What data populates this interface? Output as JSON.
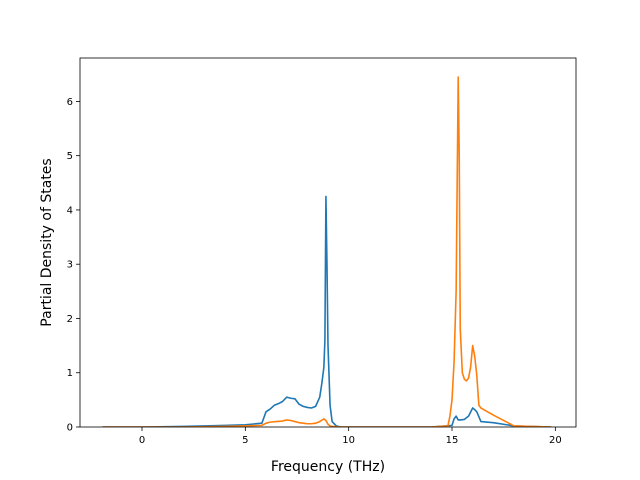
{
  "chart_data": {
    "type": "line",
    "title": "",
    "xlabel": "Frequency (THz)",
    "ylabel": "Partial Density of States",
    "xlim": [
      -3,
      21
    ],
    "ylim": [
      0,
      6.8
    ],
    "xticks": [
      0,
      5,
      10,
      15,
      20
    ],
    "yticks": [
      0,
      1,
      2,
      3,
      4,
      5,
      6
    ],
    "grid": false,
    "legend": "none",
    "series": [
      {
        "color": "#1f77b4",
        "x": [
          -1.9,
          0,
          2,
          4,
          5,
          5.8,
          6.0,
          6.2,
          6.4,
          6.6,
          6.8,
          7.0,
          7.2,
          7.4,
          7.6,
          7.8,
          8.0,
          8.2,
          8.4,
          8.6,
          8.7,
          8.8,
          8.85,
          8.9,
          8.95,
          9.0,
          9.1,
          9.2,
          9.4,
          9.6,
          10,
          12,
          14,
          15.0,
          15.1,
          15.2,
          15.3,
          15.4,
          15.6,
          15.8,
          16.0,
          16.1,
          16.2,
          16.4,
          17.0,
          18.0,
          19.8
        ],
        "y": [
          0,
          0,
          0.01,
          0.03,
          0.04,
          0.07,
          0.28,
          0.33,
          0.4,
          0.43,
          0.47,
          0.55,
          0.53,
          0.52,
          0.42,
          0.38,
          0.36,
          0.35,
          0.38,
          0.55,
          0.8,
          1.1,
          1.6,
          4.25,
          3.0,
          1.5,
          0.4,
          0.1,
          0.02,
          0,
          0,
          0,
          0,
          0.03,
          0.15,
          0.2,
          0.13,
          0.13,
          0.14,
          0.2,
          0.35,
          0.32,
          0.28,
          0.1,
          0.08,
          0.02,
          0
        ]
      },
      {
        "color": "#ff7f0e",
        "x": [
          -1.9,
          0,
          2,
          4,
          5,
          5.8,
          6.0,
          6.2,
          6.5,
          6.8,
          7.0,
          7.2,
          7.4,
          7.6,
          7.8,
          8.0,
          8.2,
          8.4,
          8.6,
          8.8,
          8.9,
          9.0,
          9.1,
          9.2,
          9.6,
          10,
          12,
          14,
          14.8,
          14.9,
          15.0,
          15.1,
          15.2,
          15.3,
          15.35,
          15.4,
          15.5,
          15.6,
          15.7,
          15.8,
          15.9,
          16.0,
          16.1,
          16.2,
          16.3,
          16.4,
          17.0,
          17.8,
          18.0,
          19.8
        ],
        "y": [
          0,
          0,
          0,
          0.01,
          0.02,
          0.03,
          0.07,
          0.09,
          0.1,
          0.11,
          0.13,
          0.12,
          0.1,
          0.08,
          0.07,
          0.06,
          0.06,
          0.07,
          0.1,
          0.15,
          0.12,
          0.05,
          0.02,
          0.01,
          0,
          0,
          0,
          0,
          0.02,
          0.2,
          0.5,
          1.2,
          2.5,
          6.45,
          5.0,
          1.8,
          1.0,
          0.88,
          0.85,
          0.9,
          1.1,
          1.5,
          1.3,
          0.95,
          0.4,
          0.35,
          0.22,
          0.06,
          0.02,
          0
        ]
      }
    ]
  }
}
